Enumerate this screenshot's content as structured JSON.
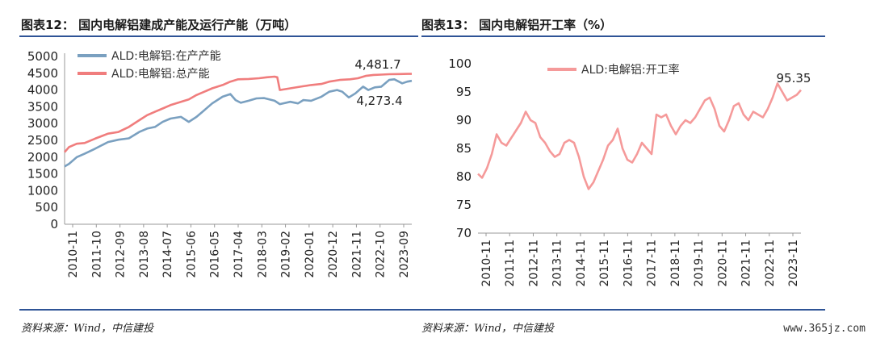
{
  "header": {
    "left_title": "图表12：  国内电解铝建成产能及运行产能（万吨）",
    "right_title": "图表13：  国内电解铝开工率（%）"
  },
  "footer": {
    "left_source": "资料来源：Wind，中信建投",
    "right_source": "资料来源：Wind，中信建投",
    "watermark": "www.365jz.com"
  },
  "colors": {
    "running": "#7aa0c0",
    "built": "#f07d7d",
    "rate": "#f59a9a",
    "rule": "#2e5396"
  },
  "chart_data": [
    {
      "type": "line",
      "ylim": [
        0,
        5000
      ],
      "yticks": [
        0,
        500,
        1000,
        1500,
        2000,
        2500,
        3000,
        3500,
        4000,
        4500,
        5000
      ],
      "xlim": [
        2010.83,
        2024.17
      ],
      "xticks": [
        "2010-11",
        "2011-10",
        "2012-09",
        "2013-08",
        "2014-07",
        "2015-06",
        "2016-05",
        "2017-04",
        "2018-03",
        "2019-02",
        "2020-01",
        "2020-12",
        "2021-11",
        "2022-10",
        "2023-09"
      ],
      "legend_position": "top-left",
      "series": [
        {
          "name": "ALD:电解铝:在产产能",
          "x": [
            2010.83,
            2011.0,
            2011.3,
            2011.6,
            2012.0,
            2012.5,
            2012.9,
            2013.3,
            2013.7,
            2014.0,
            2014.3,
            2014.6,
            2014.9,
            2015.3,
            2015.6,
            2015.9,
            2016.2,
            2016.5,
            2016.9,
            2017.2,
            2017.4,
            2017.6,
            2017.9,
            2018.2,
            2018.5,
            2018.9,
            2019.1,
            2019.5,
            2019.8,
            2020.0,
            2020.3,
            2020.7,
            2021.0,
            2021.3,
            2021.5,
            2021.75,
            2022.0,
            2022.3,
            2022.5,
            2022.75,
            2023.0,
            2023.3,
            2023.5,
            2023.8,
            2024.0,
            2024.17
          ],
          "values": [
            1720,
            1800,
            2000,
            2100,
            2250,
            2450,
            2520,
            2560,
            2750,
            2850,
            2900,
            3050,
            3150,
            3200,
            3050,
            3200,
            3400,
            3600,
            3800,
            3880,
            3700,
            3620,
            3680,
            3750,
            3760,
            3680,
            3580,
            3650,
            3600,
            3700,
            3680,
            3800,
            3950,
            4000,
            3950,
            3780,
            3900,
            4100,
            4000,
            4080,
            4100,
            4300,
            4320,
            4200,
            4250,
            4273.4
          ]
        },
        {
          "name": "ALD:电解铝:总产能",
          "x": [
            2010.83,
            2011.0,
            2011.3,
            2011.6,
            2012.0,
            2012.5,
            2012.9,
            2013.3,
            2013.7,
            2014.0,
            2014.3,
            2014.6,
            2014.9,
            2015.3,
            2015.6,
            2015.9,
            2016.2,
            2016.5,
            2016.9,
            2017.2,
            2017.5,
            2017.9,
            2018.3,
            2018.6,
            2018.9,
            2019.0,
            2019.1,
            2019.5,
            2019.9,
            2020.3,
            2020.7,
            2021.0,
            2021.4,
            2021.8,
            2022.1,
            2022.4,
            2022.7,
            2023.0,
            2023.3,
            2023.7,
            2024.0,
            2024.17
          ],
          "values": [
            2150,
            2300,
            2400,
            2420,
            2550,
            2700,
            2750,
            2900,
            3100,
            3250,
            3350,
            3450,
            3550,
            3650,
            3720,
            3850,
            3950,
            4050,
            4150,
            4250,
            4320,
            4330,
            4350,
            4380,
            4400,
            4380,
            4000,
            4050,
            4100,
            4150,
            4180,
            4250,
            4300,
            4320,
            4350,
            4420,
            4450,
            4460,
            4470,
            4475,
            4480,
            4481.7
          ]
        }
      ],
      "annotations": [
        "4,481.7",
        "4,273.4"
      ]
    },
    {
      "type": "line",
      "ylim": [
        70,
        100
      ],
      "yticks": [
        70,
        75,
        80,
        85,
        90,
        95,
        100
      ],
      "xlim": [
        2010.83,
        2024.17
      ],
      "xticks": [
        "2010-11",
        "2011-11",
        "2012-11",
        "2013-11",
        "2014-11",
        "2015-11",
        "2016-11",
        "2017-11",
        "2018-11",
        "2019-11",
        "2020-11",
        "2021-11",
        "2022-11",
        "2023-11"
      ],
      "legend_position": "top-left",
      "series": [
        {
          "name": "ALD:电解铝:开工率",
          "x": [
            2010.83,
            2011.0,
            2011.2,
            2011.4,
            2011.6,
            2011.8,
            2012.0,
            2012.3,
            2012.6,
            2012.8,
            2013.0,
            2013.2,
            2013.4,
            2013.6,
            2013.8,
            2014.0,
            2014.2,
            2014.4,
            2014.6,
            2014.8,
            2015.0,
            2015.2,
            2015.4,
            2015.6,
            2015.8,
            2016.0,
            2016.2,
            2016.4,
            2016.6,
            2016.8,
            2017.0,
            2017.2,
            2017.4,
            2017.6,
            2017.8,
            2018.0,
            2018.2,
            2018.4,
            2018.6,
            2018.8,
            2019.0,
            2019.2,
            2019.4,
            2019.6,
            2019.8,
            2020.0,
            2020.2,
            2020.4,
            2020.6,
            2020.8,
            2021.0,
            2021.2,
            2021.4,
            2021.6,
            2021.8,
            2022.0,
            2022.2,
            2022.4,
            2022.6,
            2022.8,
            2023.0,
            2023.2,
            2023.4,
            2023.6,
            2023.8,
            2024.0,
            2024.17
          ],
          "values": [
            80.5,
            79.8,
            81.5,
            84,
            87.5,
            86,
            85.5,
            87.5,
            89.5,
            91.5,
            90,
            89.5,
            87,
            86,
            84.5,
            83.5,
            84,
            86,
            86.5,
            86,
            83.5,
            80,
            77.8,
            79,
            81,
            83,
            85.5,
            86.5,
            88.5,
            85,
            83,
            82.5,
            84,
            86,
            85,
            84,
            91,
            90.5,
            91,
            89,
            87.5,
            89,
            90,
            89.5,
            90.5,
            92,
            93.5,
            94,
            92,
            89,
            88,
            90,
            92.5,
            93,
            91,
            90,
            91.5,
            91,
            90.5,
            92,
            94,
            96.5,
            95,
            93.5,
            94,
            94.5,
            95.35
          ]
        }
      ],
      "annotations": [
        "95.35"
      ]
    }
  ]
}
